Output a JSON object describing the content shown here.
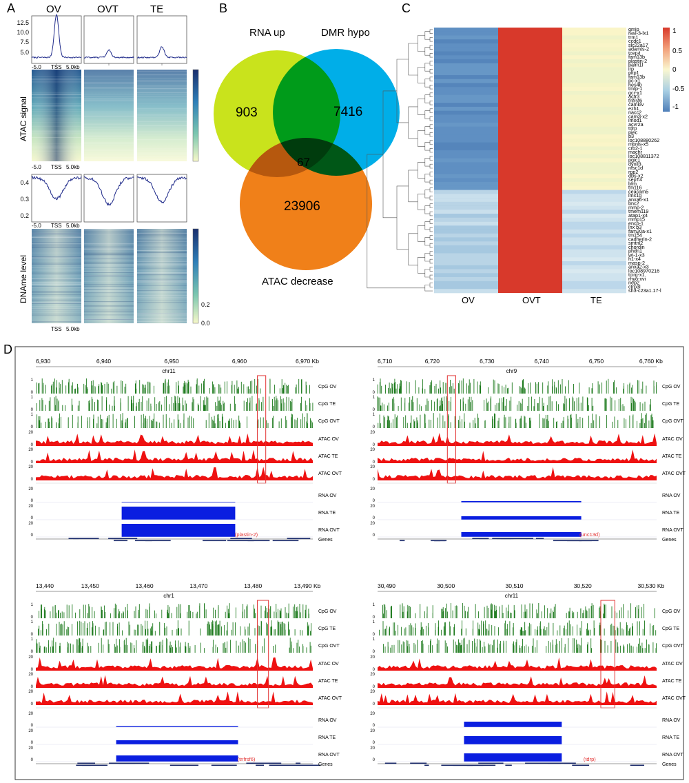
{
  "panels": {
    "a": "A",
    "b": "B",
    "c": "C",
    "d": "D"
  },
  "colors": {
    "venn_rna": "#c9e31c",
    "venn_dmr": "#00aee8",
    "venn_atac": "#f08019",
    "cpg": "#1d7a1d",
    "atac": "#ee1111",
    "rna": "#0a1ee0",
    "heat_low": "#4f7fb9",
    "heat_high": "#d8392b",
    "heat_mid": "#faf7d0",
    "box": "#e23030"
  },
  "panel_a": {
    "columns": [
      "OV",
      "OVT",
      "TE"
    ],
    "atac_profile_yticks": [
      "12.5",
      "10.0",
      "7.5",
      "5.0"
    ],
    "atac_profile_xticks": [
      "-5.0",
      "TSS",
      "5.0kb"
    ],
    "atac_heatmap_label": "ATAC signal",
    "atac_heatmap_xticks": [
      "-5.0",
      "TSS",
      "5.0kb"
    ],
    "dname_profile_yticks": [
      "0.4",
      "0.3",
      "0.2"
    ],
    "dname_profile_xticks": [
      "-5.0",
      "TSS",
      "5.0kb"
    ],
    "dname_heatmap_label": "DNAme level",
    "dname_heatmap_xticks": [
      "TSS",
      "5.0kb"
    ],
    "dname_colorbar_ticks": [
      "0.2",
      "0.0"
    ]
  },
  "panel_b": {
    "set_rna": "RNA up",
    "set_dmr": "DMR hypo",
    "set_atac": "ATAC decrease",
    "only_rna": "903",
    "only_dmr": "7416",
    "only_atac": "23906",
    "all_three": "67"
  },
  "panel_c": {
    "columns": [
      "OV",
      "OVT",
      "TE"
    ],
    "colorbar_ticks": [
      "1",
      "0.5",
      "0",
      "-0.5",
      "-1"
    ],
    "genes": [
      "gmip",
      "rasl-3-lx1",
      "trm1",
      "ccdc1",
      "slc22a17",
      "adamts-2",
      "tcep4",
      "fam13b",
      "plastin-2",
      "palm1l",
      "irp",
      "pitp1",
      "fam13b",
      "pc-x1",
      "hes4b",
      "tmtp-1",
      "gcr-x1",
      "actr3",
      "tnfrsf6",
      "camkiv",
      "ezh1",
      "nacc2",
      "carn3-x2",
      "imod1",
      "acvr2a",
      "tdrp",
      "piec",
      "b3",
      "loc108880262",
      "mbnls-x5",
      "crb2-1",
      "machr",
      "loc108811372",
      "pgic1",
      "dynll3",
      "nfsc1d",
      "rpp2",
      "dbs-x2",
      "sepT4",
      "bfm",
      "tm116",
      "ceacam5",
      "lmx1g",
      "anxa6-x1",
      "bnc2",
      "mmp-2",
      "tmem119",
      "atap1-x4",
      "mmp15",
      "encb-1",
      "lnx b3",
      "fam20a-x1",
      "tm154",
      "cadherin-2",
      "smtnl2",
      "chordin",
      "phdn1",
      "wt-1-x3",
      "h1-x4",
      "masp-2",
      "anxa2-x3",
      "loc108970216",
      "tcirg-x1",
      "rhyo-xvi",
      "nep2",
      "ctrp3l",
      "sh3-c23a1.17-l"
    ]
  },
  "panel_d": {
    "tracks": {
      "cpg": [
        "CpG OV",
        "CpG TE",
        "CpG OVT"
      ],
      "atac": [
        "ATAC OV",
        "ATAC TE",
        "ATAC OVT"
      ],
      "rna": [
        "RNA OV",
        "RNA TE",
        "RNA OVT"
      ],
      "genes": "Genes"
    },
    "scale": {
      "cpg_top": "1",
      "cpg_bottom": "0",
      "signal_top": "20",
      "signal_bottom": "0"
    },
    "loci": [
      {
        "chrom": "chr11",
        "ticks": [
          "6,930",
          "6,940",
          "6,950",
          "6,960",
          "6,970 Kb"
        ],
        "gene": "plastin-2",
        "hl_start": 0.8,
        "hl_width": 0.03,
        "rna": [
          0.0,
          0.95,
          0.95
        ],
        "rna_start": 0.31,
        "rna_end": 0.72,
        "seed": 11
      },
      {
        "chrom": "chr9",
        "ticks": [
          "6,710",
          "6,720",
          "6,730",
          "6,740",
          "6,750",
          "6,760 Kb"
        ],
        "gene": "unc13d",
        "hl_start": 0.25,
        "hl_width": 0.03,
        "rna": [
          0.1,
          0.25,
          0.35
        ],
        "rna_start": 0.3,
        "rna_end": 0.73,
        "seed": 23
      },
      {
        "chrom": "chr1",
        "ticks": [
          "13,440",
          "13,450",
          "13,460",
          "13,470",
          "13,480",
          "13,490 Kb"
        ],
        "gene": "tnfrsf6",
        "hl_start": 0.8,
        "hl_width": 0.04,
        "rna": [
          0.08,
          0.3,
          0.45
        ],
        "rna_start": 0.29,
        "rna_end": 0.73,
        "seed": 37
      },
      {
        "chrom": "chr11",
        "ticks": [
          "30,490",
          "30,500",
          "30,510",
          "30,520",
          "30,530 Kb"
        ],
        "gene": "tdrp",
        "hl_start": 0.8,
        "hl_width": 0.05,
        "rna": [
          0.4,
          0.6,
          0.6
        ],
        "rna_start": 0.31,
        "rna_end": 0.66,
        "seed": 53
      }
    ]
  }
}
